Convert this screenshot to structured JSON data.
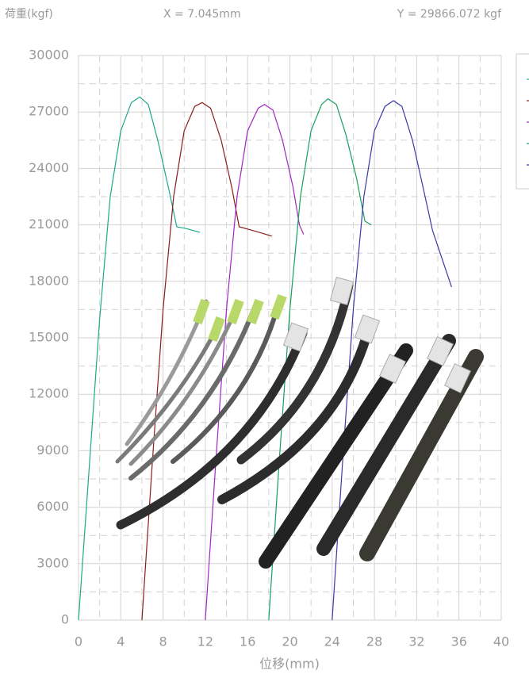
{
  "chart_data": {
    "type": "line",
    "title": "荷重(kgf)",
    "annotations": [
      "X = 7.045mm",
      "Y = 29866.072 kgf"
    ],
    "x_label": "位移(mm)",
    "xlim": [
      0,
      40
    ],
    "xticks": [
      0,
      4,
      8,
      12,
      16,
      20,
      24,
      28,
      32,
      36,
      40
    ],
    "ylim": [
      0,
      30000
    ],
    "yticks": [
      0,
      3000,
      6000,
      9000,
      12000,
      15000,
      18000,
      21000,
      24000,
      27000,
      30000
    ],
    "grid": true,
    "legend": "upper right",
    "series": [
      {
        "color": "#1fa88c",
        "x": [
          0,
          1,
          2,
          3,
          4,
          5,
          5.8,
          6.6,
          7.5,
          8.5,
          9.3,
          10.2,
          11.5
        ],
        "values": [
          0,
          8000,
          16000,
          22500,
          26000,
          27500,
          27800,
          27400,
          25500,
          23000,
          20900,
          20800,
          20600
        ]
      },
      {
        "color": "#8b1c1c",
        "x": [
          6,
          7,
          8,
          9,
          10,
          11,
          11.7,
          12.5,
          13.5,
          14.5,
          15.2,
          16.5,
          18.3
        ],
        "values": [
          0,
          8500,
          16500,
          22500,
          26000,
          27300,
          27500,
          27200,
          25500,
          23000,
          20900,
          20700,
          20400
        ]
      },
      {
        "color": "#a127c4",
        "x": [
          12,
          13,
          14,
          15,
          16,
          17,
          17.6,
          18.4,
          19.3,
          20.3,
          20.9,
          21.3
        ],
        "values": [
          0,
          8500,
          16500,
          22500,
          26000,
          27200,
          27400,
          27100,
          25500,
          23000,
          21000,
          20500
        ]
      },
      {
        "color": "#17a05e",
        "x": [
          18,
          19,
          20,
          21,
          22,
          23,
          23.6,
          24.4,
          25.3,
          26.3,
          27.1,
          27.7
        ],
        "values": [
          0,
          8500,
          16500,
          22500,
          26000,
          27400,
          27700,
          27400,
          25800,
          23500,
          21200,
          21000
        ]
      },
      {
        "color": "#3a3aa8",
        "x": [
          24,
          25,
          26,
          27,
          28,
          29,
          29.8,
          30.6,
          31.6,
          32.6,
          33.5,
          35.3
        ],
        "values": [
          0,
          8500,
          16500,
          22500,
          26000,
          27300,
          27600,
          27300,
          25500,
          23000,
          20700,
          17700
        ]
      }
    ]
  }
}
